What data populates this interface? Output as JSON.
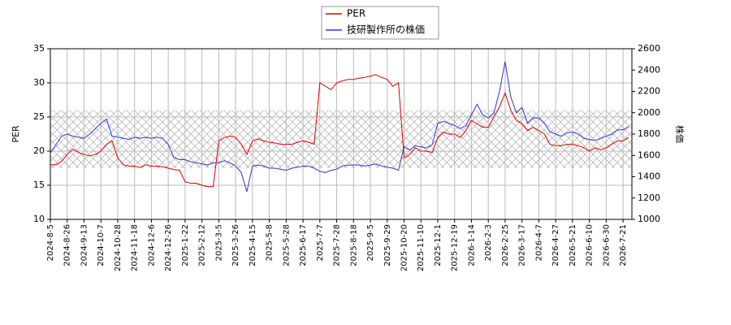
{
  "chart_data": {
    "type": "line",
    "categories": [
      "2024-8-5",
      null,
      null,
      "2024-8-26",
      null,
      null,
      "2024-9-13",
      null,
      null,
      "2024-10-7",
      null,
      null,
      "2024-10-28",
      null,
      null,
      "2024-11-18",
      null,
      null,
      "2024-12-6",
      null,
      null,
      "2024-12-26",
      null,
      null,
      "2025-1-22",
      null,
      null,
      "2025-2-12",
      null,
      null,
      "2025-3-5",
      null,
      null,
      "2025-3-26",
      null,
      null,
      "2025-4-15",
      null,
      null,
      "2025-5-8",
      null,
      null,
      "2025-5-28",
      null,
      null,
      "2025-6-17",
      null,
      null,
      "2025-7-7",
      null,
      null,
      "2025-7-28",
      null,
      null,
      "2025-8-18",
      null,
      null,
      "2025-9-5",
      null,
      null,
      "2025-9-29",
      null,
      null,
      "2025-10-20",
      null,
      null,
      "2025-11-10",
      null,
      null,
      "2025-12-1",
      null,
      null,
      "2025-12-19",
      null,
      null,
      "2026-1-14",
      null,
      null,
      "2026-2-3",
      null,
      null,
      "2026-2-25",
      null,
      null,
      "2026-3-17",
      null,
      null,
      "2026-4-7",
      null,
      null,
      "2026-4-27",
      null,
      null,
      "2026-5-21",
      null,
      null,
      "2026-6-10",
      null,
      null,
      "2026-6-30",
      null,
      null,
      "2026-7-21",
      null
    ],
    "series": [
      {
        "name": "PER",
        "color": "#dd0000",
        "values": [
          18,
          18,
          18.5,
          19.5,
          20.3,
          19.8,
          19.5,
          19.3,
          19.5,
          20,
          21,
          21.5,
          19,
          18,
          17.8,
          17.8,
          17.6,
          18,
          17.8,
          17.8,
          17.7,
          17.5,
          17.3,
          17.2,
          15.5,
          15.3,
          15.3,
          15,
          14.8,
          14.8,
          21.5,
          22,
          22.2,
          22,
          21,
          19.5,
          21.5,
          21.8,
          21.5,
          21.3,
          21.2,
          21,
          21,
          21,
          21.3,
          21.5,
          21.3,
          21,
          30,
          29.5,
          29,
          30,
          30.3,
          30.5,
          30.5,
          30.7,
          30.8,
          31,
          31.2,
          30.8,
          30.5,
          29.5,
          30,
          19,
          19.5,
          20.5,
          20,
          20,
          19.8,
          22,
          22.8,
          22.5,
          22.5,
          22,
          23,
          24.5,
          24,
          23.5,
          23.5,
          25,
          26.5,
          28.5,
          26,
          24.5,
          24,
          23,
          23.5,
          23,
          22.5,
          21,
          20.8,
          20.8,
          21,
          21,
          20.8,
          20.5,
          20,
          20.5,
          20.2,
          20.5,
          21,
          21.5,
          21.5,
          22
        ]
      },
      {
        "name": "技研製作所の株価",
        "color": "#3333cc",
        "axis": "y2",
        "values": [
          1620,
          1700,
          1780,
          1800,
          1780,
          1770,
          1760,
          1800,
          1850,
          1900,
          1940,
          1780,
          1770,
          1760,
          1750,
          1770,
          1760,
          1770,
          1760,
          1770,
          1760,
          1700,
          1580,
          1560,
          1560,
          1540,
          1530,
          1520,
          1510,
          1530,
          1530,
          1550,
          1530,
          1500,
          1440,
          1260,
          1500,
          1510,
          1500,
          1480,
          1480,
          1470,
          1460,
          1480,
          1490,
          1500,
          1500,
          1480,
          1450,
          1440,
          1460,
          1470,
          1500,
          1510,
          1510,
          1510,
          1500,
          1510,
          1520,
          1500,
          1490,
          1480,
          1460,
          1680,
          1650,
          1690,
          1680,
          1670,
          1700,
          1900,
          1920,
          1900,
          1880,
          1850,
          1880,
          1980,
          2080,
          1980,
          1950,
          2000,
          2200,
          2480,
          2150,
          2000,
          2050,
          1900,
          1950,
          1950,
          1900,
          1820,
          1800,
          1780,
          1810,
          1820,
          1800,
          1760,
          1750,
          1740,
          1760,
          1780,
          1800,
          1840,
          1840,
          1870
        ]
      }
    ],
    "ylabel": "PER",
    "y2label": "株価",
    "ylim": [
      10,
      35
    ],
    "yticks": [
      10,
      15,
      20,
      25,
      30,
      35
    ],
    "y2lim": [
      1000,
      2600
    ],
    "y2ticks": [
      1000,
      1200,
      1400,
      1600,
      1800,
      2000,
      2200,
      2400,
      2600
    ],
    "band": [
      17.5,
      26
    ],
    "grid": true
  }
}
